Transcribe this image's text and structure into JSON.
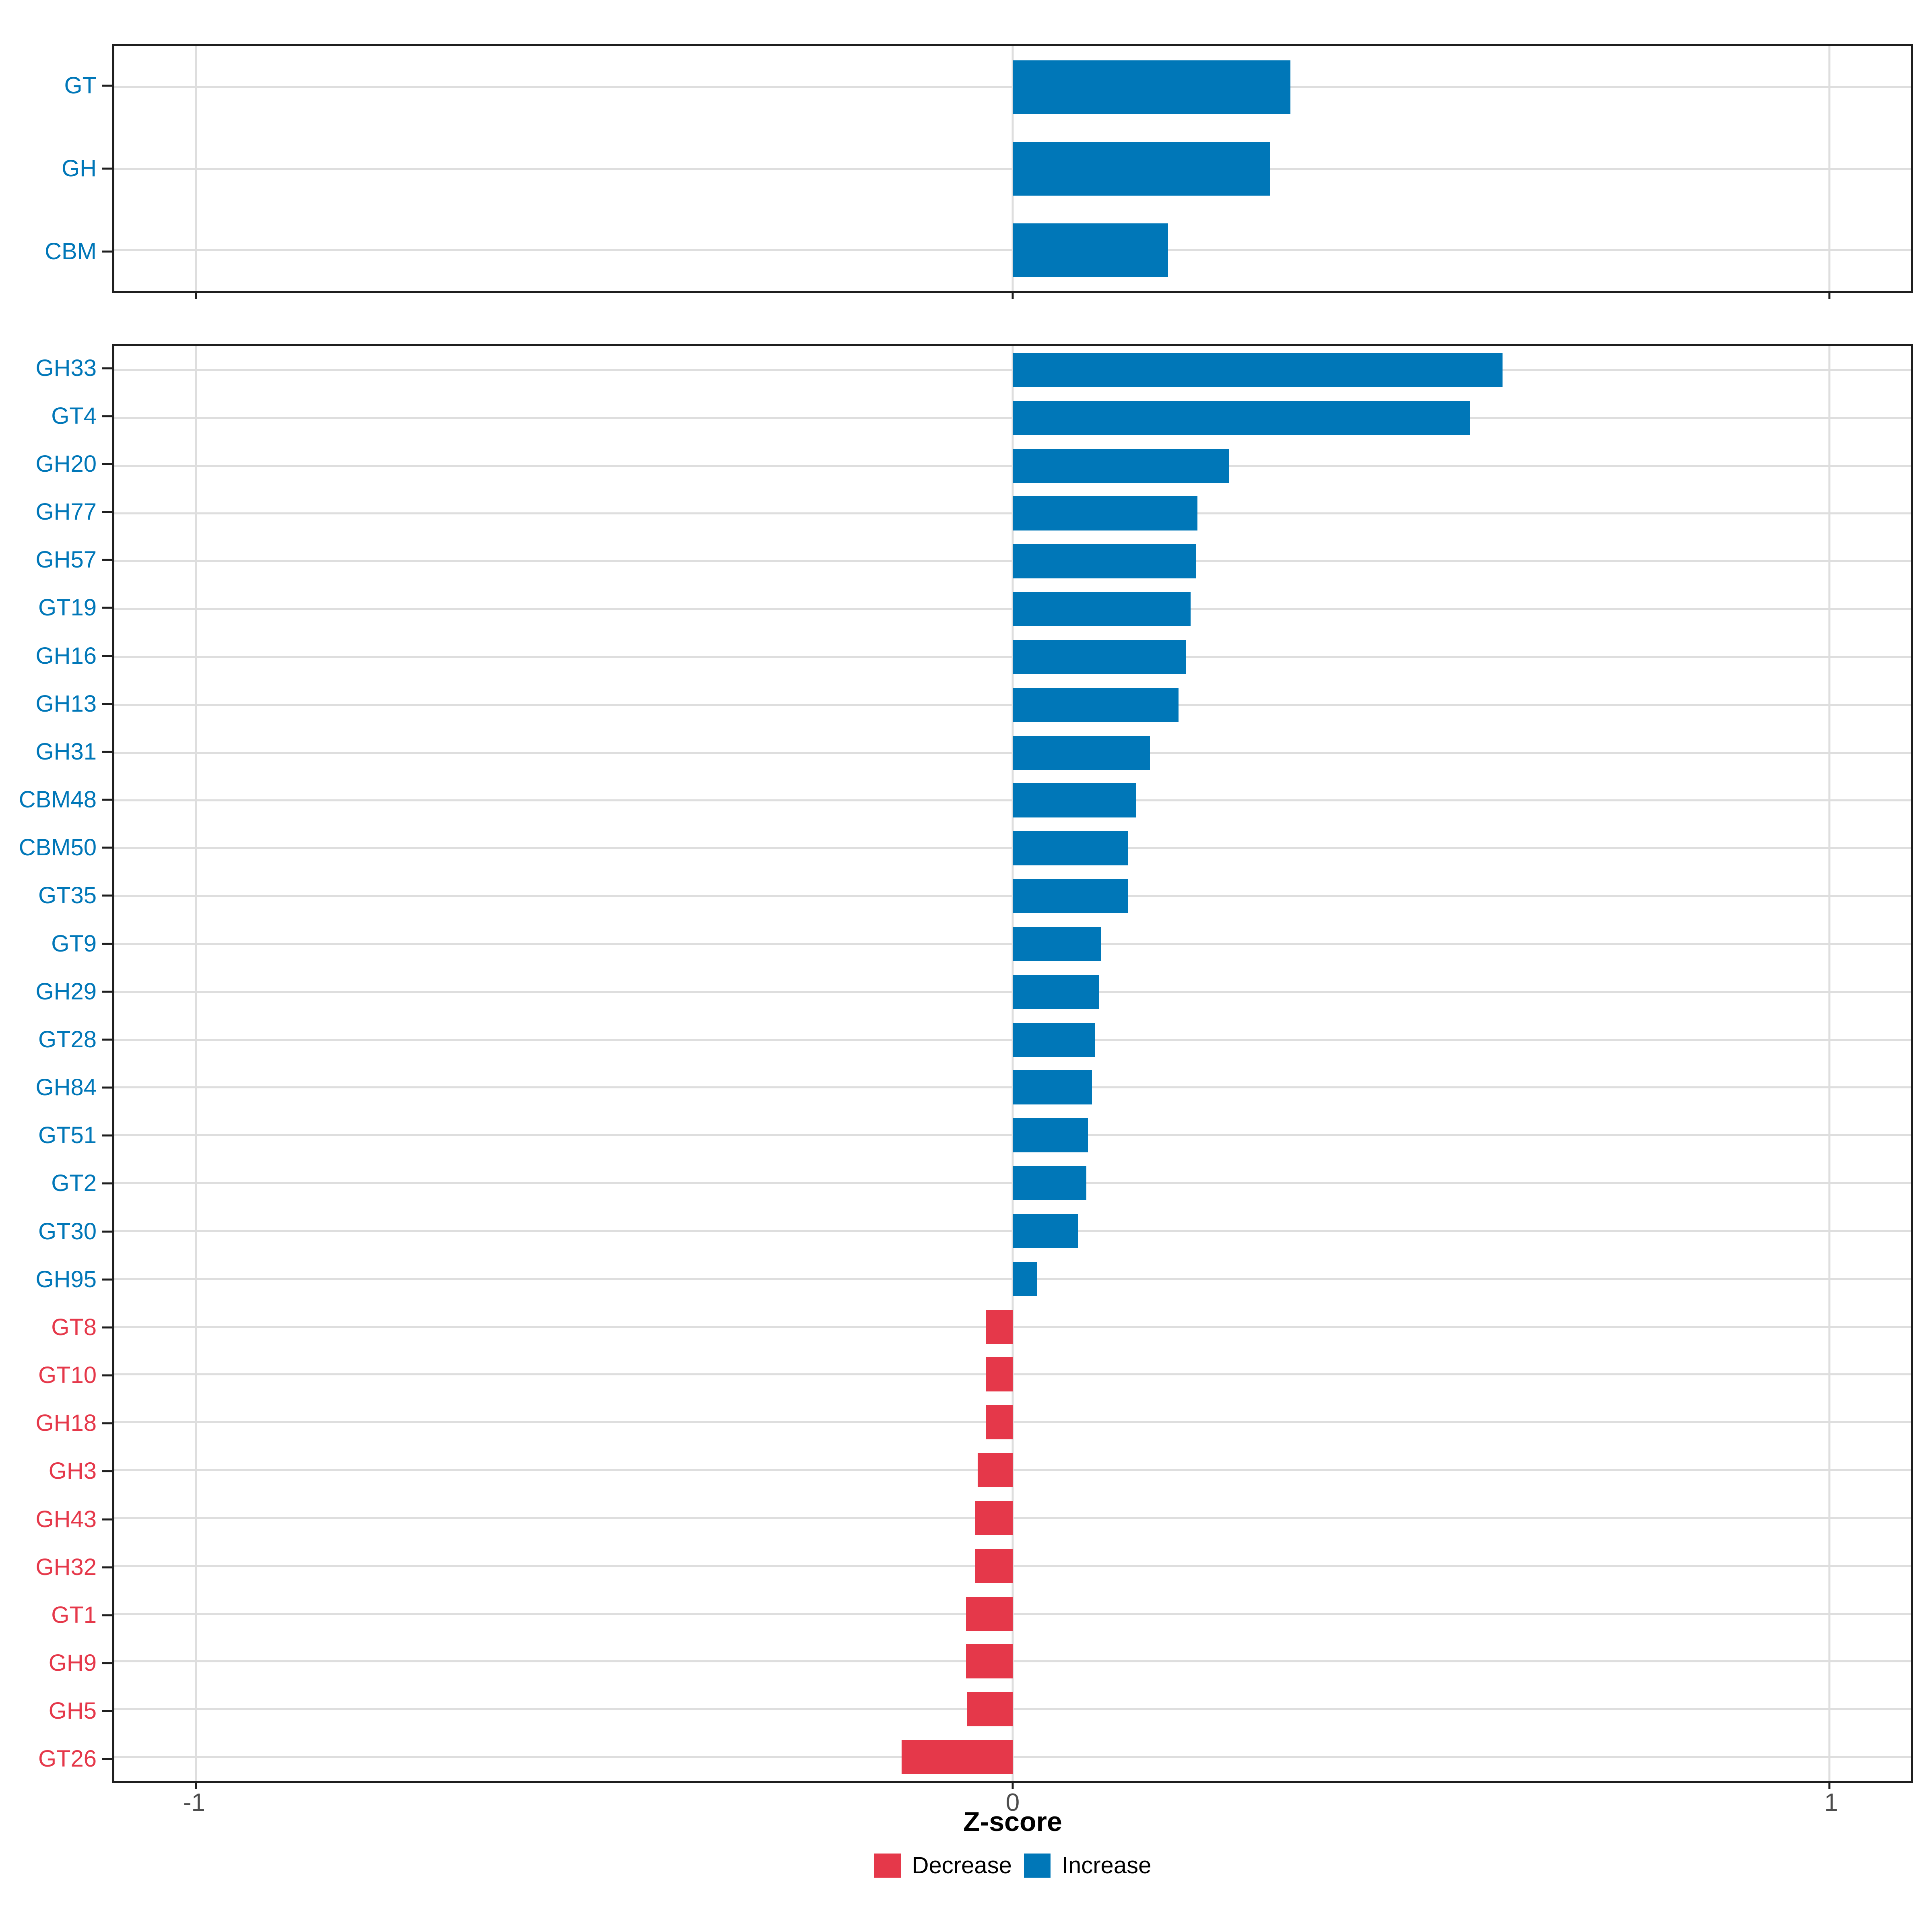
{
  "figure": {
    "xlabel": "Z-score",
    "x_tick_labels": [
      "-1",
      "0",
      "1"
    ],
    "colors": {
      "increase": "#0077B8",
      "decrease": "#E5384A",
      "grid": "#DEDEDE",
      "axis_text": "#4D4D4D",
      "panel_border": "#1F1F1F"
    },
    "legend": {
      "items": [
        {
          "label": "Decrease",
          "color": "#E5384A"
        },
        {
          "label": "Increase",
          "color": "#0077B8"
        }
      ]
    }
  },
  "chart_data": [
    {
      "type": "bar",
      "orientation": "horizontal",
      "panel": "enzyme-classes",
      "categories": [
        "GT",
        "GH",
        "CBM"
      ],
      "values": [
        0.34,
        0.315,
        0.19
      ],
      "xlim": [
        -1.1,
        1.1
      ],
      "x_ticks": [
        -1,
        0,
        1
      ],
      "xlabel": "Z-score",
      "grid": true,
      "legend_position": "bottom",
      "color_rule": "positive = Increase (blue), negative = Decrease (red)"
    },
    {
      "type": "bar",
      "orientation": "horizontal",
      "panel": "enzyme-families",
      "categories": [
        "GH33",
        "GT4",
        "GH20",
        "GH77",
        "GH57",
        "GT19",
        "GH16",
        "GH13",
        "GH31",
        "CBM48",
        "CBM50",
        "GT35",
        "GT9",
        "GH29",
        "GT28",
        "GH84",
        "GT51",
        "GT2",
        "GT30",
        "GH95",
        "GT8",
        "GT10",
        "GH18",
        "GH3",
        "GH43",
        "GH32",
        "GT1",
        "GH9",
        "GH5",
        "GT26"
      ],
      "values": [
        0.6,
        0.56,
        0.265,
        0.226,
        0.224,
        0.218,
        0.212,
        0.203,
        0.168,
        0.151,
        0.141,
        0.141,
        0.108,
        0.106,
        0.101,
        0.097,
        0.092,
        0.09,
        0.08,
        0.03,
        -0.033,
        -0.033,
        -0.033,
        -0.043,
        -0.046,
        -0.046,
        -0.057,
        -0.057,
        -0.056,
        -0.136
      ],
      "xlim": [
        -1.1,
        1.1
      ],
      "x_ticks": [
        -1,
        0,
        1
      ],
      "xlabel": "Z-score",
      "grid": true,
      "legend_position": "bottom",
      "color_rule": "positive = Increase (blue), negative = Decrease (red)"
    }
  ]
}
